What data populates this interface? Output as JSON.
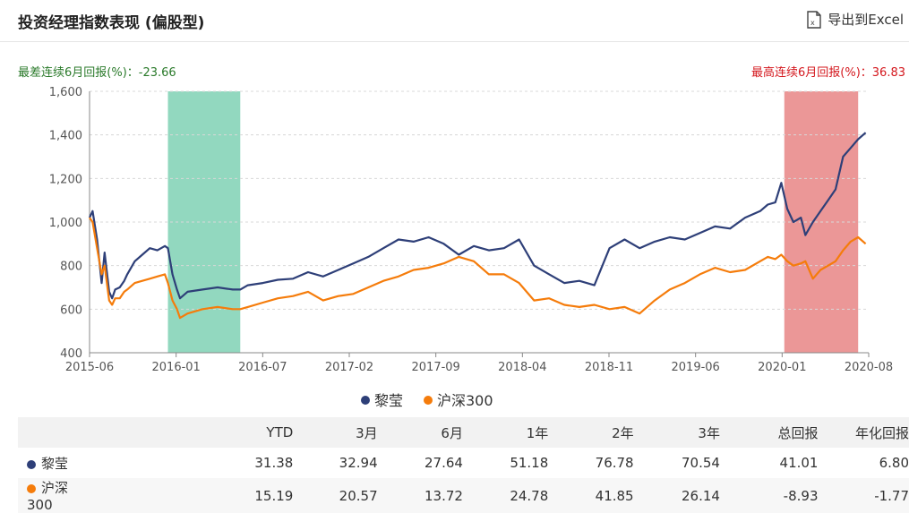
{
  "header": {
    "title": "投资经理指数表现 (偏股型)",
    "export_label": "导出到Excel"
  },
  "annotations": {
    "worst_label": "最差连续6月回报(%)：-23.66",
    "best_label": "最高连续6月回报(%)：36.83"
  },
  "colors": {
    "manager": "#2e3f78",
    "index": "#f57c0b",
    "worst_band": "#7fd1b4",
    "best_band": "#e88585",
    "worst_text": "#2a7a2a",
    "best_text": "#d4181e"
  },
  "chart_data": {
    "type": "line",
    "x_ticks": [
      "2015-06",
      "2016-01",
      "2016-07",
      "2017-02",
      "2017-09",
      "2018-04",
      "2018-11",
      "2019-06",
      "2020-01",
      "2020-08"
    ],
    "x_range": [
      2015.45,
      2020.62
    ],
    "ylim": [
      400,
      1600
    ],
    "y_ticks": [
      400,
      600,
      800,
      1000,
      1200,
      1400,
      1600
    ],
    "grid": true,
    "legend_position": "bottom",
    "bands": [
      {
        "from": 2015.97,
        "to": 2016.45,
        "kind": "worst"
      },
      {
        "from": 2020.06,
        "to": 2020.55,
        "kind": "best"
      }
    ],
    "series": [
      {
        "name": "黎莹",
        "x": [
          2015.45,
          2015.47,
          2015.5,
          2015.53,
          2015.55,
          2015.58,
          2015.6,
          2015.62,
          2015.65,
          2015.68,
          2015.7,
          2015.75,
          2015.8,
          2015.85,
          2015.9,
          2015.95,
          2015.97,
          2016.0,
          2016.03,
          2016.05,
          2016.1,
          2016.2,
          2016.3,
          2016.4,
          2016.45,
          2016.5,
          2016.6,
          2016.7,
          2016.8,
          2016.9,
          2017.0,
          2017.1,
          2017.2,
          2017.3,
          2017.4,
          2017.5,
          2017.6,
          2017.7,
          2017.8,
          2017.9,
          2018.0,
          2018.1,
          2018.2,
          2018.3,
          2018.4,
          2018.5,
          2018.6,
          2018.7,
          2018.8,
          2018.9,
          2019.0,
          2019.1,
          2019.2,
          2019.3,
          2019.4,
          2019.5,
          2019.6,
          2019.7,
          2019.8,
          2019.9,
          2019.95,
          2020.0,
          2020.04,
          2020.08,
          2020.12,
          2020.17,
          2020.2,
          2020.25,
          2020.3,
          2020.35,
          2020.4,
          2020.45,
          2020.5,
          2020.55,
          2020.6
        ],
        "values": [
          1020,
          1050,
          920,
          720,
          860,
          680,
          650,
          690,
          700,
          730,
          760,
          820,
          850,
          880,
          870,
          890,
          880,
          760,
          690,
          650,
          680,
          690,
          700,
          690,
          690,
          710,
          720,
          735,
          740,
          770,
          750,
          780,
          810,
          840,
          880,
          920,
          910,
          930,
          900,
          850,
          890,
          870,
          880,
          920,
          800,
          760,
          720,
          730,
          710,
          880,
          920,
          880,
          910,
          930,
          920,
          950,
          980,
          970,
          1020,
          1050,
          1080,
          1090,
          1180,
          1060,
          1000,
          1020,
          940,
          1000,
          1050,
          1100,
          1150,
          1300,
          1340,
          1380,
          1410
        ]
      },
      {
        "name": "沪深300",
        "x": [
          2015.45,
          2015.47,
          2015.5,
          2015.53,
          2015.55,
          2015.58,
          2015.6,
          2015.62,
          2015.65,
          2015.68,
          2015.7,
          2015.75,
          2015.8,
          2015.85,
          2015.9,
          2015.95,
          2015.97,
          2016.0,
          2016.03,
          2016.05,
          2016.1,
          2016.2,
          2016.3,
          2016.4,
          2016.45,
          2016.5,
          2016.6,
          2016.7,
          2016.8,
          2016.9,
          2017.0,
          2017.1,
          2017.2,
          2017.3,
          2017.4,
          2017.5,
          2017.6,
          2017.7,
          2017.8,
          2017.9,
          2018.0,
          2018.1,
          2018.2,
          2018.3,
          2018.4,
          2018.5,
          2018.6,
          2018.7,
          2018.8,
          2018.9,
          2019.0,
          2019.1,
          2019.2,
          2019.3,
          2019.4,
          2019.5,
          2019.6,
          2019.7,
          2019.8,
          2019.9,
          2019.95,
          2020.0,
          2020.04,
          2020.08,
          2020.12,
          2020.17,
          2020.2,
          2020.25,
          2020.3,
          2020.35,
          2020.4,
          2020.45,
          2020.5,
          2020.55,
          2020.6
        ],
        "values": [
          1020,
          1000,
          880,
          760,
          800,
          640,
          620,
          650,
          650,
          680,
          690,
          720,
          730,
          740,
          750,
          760,
          720,
          640,
          600,
          560,
          580,
          600,
          610,
          600,
          600,
          610,
          630,
          650,
          660,
          680,
          640,
          660,
          670,
          700,
          730,
          750,
          780,
          790,
          810,
          840,
          820,
          760,
          760,
          720,
          640,
          650,
          620,
          610,
          620,
          600,
          610,
          580,
          640,
          690,
          720,
          760,
          790,
          770,
          780,
          820,
          840,
          830,
          850,
          820,
          800,
          810,
          820,
          740,
          780,
          800,
          820,
          870,
          910,
          930,
          900
        ]
      }
    ]
  },
  "legend": [
    {
      "name": "黎莹",
      "color": "#2e3f78"
    },
    {
      "name": "沪深300",
      "color": "#f57c0b"
    }
  ],
  "table": {
    "headers": [
      "",
      "YTD",
      "3月",
      "6月",
      "1年",
      "2年",
      "3年",
      "总回报",
      "年化回报"
    ],
    "rows": [
      {
        "name": "黎莹",
        "color": "#2e3f78",
        "values": [
          "31.38",
          "32.94",
          "27.64",
          "51.18",
          "76.78",
          "70.54",
          "41.01",
          "6.80"
        ]
      },
      {
        "name": "沪深300",
        "color": "#f57c0b",
        "values": [
          "15.19",
          "20.57",
          "13.72",
          "24.78",
          "41.85",
          "26.14",
          "-8.93",
          "-1.77"
        ]
      }
    ]
  }
}
